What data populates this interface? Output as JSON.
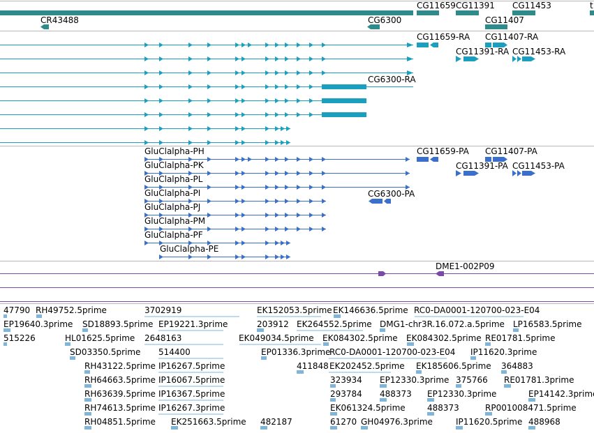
{
  "colors": {
    "gene": "#2e8b8b",
    "transcript": "#1a9fbf",
    "protein": "#3a6fcc",
    "misc": "#7a4aa8",
    "est": "#7fb5d8",
    "divider": "#b8b8b8"
  },
  "tracks": {
    "genes": {
      "labels": [
        {
          "id": "g1",
          "text": "CG11659"
        },
        {
          "id": "g2",
          "text": "CG11391"
        },
        {
          "id": "g3",
          "text": "CG11453"
        },
        {
          "id": "g4",
          "text": "t"
        },
        {
          "id": "g5",
          "text": "CR43488"
        },
        {
          "id": "g6",
          "text": "CG6300"
        },
        {
          "id": "g7",
          "text": "CG11407"
        }
      ]
    },
    "transcripts": {
      "labels": [
        {
          "id": "t1",
          "text": "CG11659-RA"
        },
        {
          "id": "t2",
          "text": "CG11407-RA"
        },
        {
          "id": "t3",
          "text": "CG11391-RA"
        },
        {
          "id": "t4",
          "text": "CG11453-RA"
        },
        {
          "id": "t5",
          "text": "CG6300-RA"
        }
      ]
    },
    "proteins": {
      "labels": [
        {
          "id": "p1",
          "text": "GluClalpha-PH"
        },
        {
          "id": "p2",
          "text": "GluClalpha-PK"
        },
        {
          "id": "p3",
          "text": "GluClalpha-PL"
        },
        {
          "id": "p4",
          "text": "GluClalpha-PI"
        },
        {
          "id": "p5",
          "text": "GluClalpha-PJ"
        },
        {
          "id": "p6",
          "text": "GluClalpha-PM"
        },
        {
          "id": "p7",
          "text": "GluClalpha-PF"
        },
        {
          "id": "p8",
          "text": "GluClalpha-PE"
        },
        {
          "id": "p9",
          "text": "CG11659-PA"
        },
        {
          "id": "p10",
          "text": "CG11407-PA"
        },
        {
          "id": "p11",
          "text": "CG11391-PA"
        },
        {
          "id": "p12",
          "text": "CG11453-PA"
        },
        {
          "id": "p13",
          "text": "CG6300-PA"
        }
      ]
    },
    "misc": {
      "labels": [
        {
          "id": "m1",
          "text": "DME1-002P09"
        }
      ]
    },
    "ests": {
      "labels": [
        {
          "id": "e1",
          "text": "47790"
        },
        {
          "id": "e2",
          "text": "RH49752.5prime"
        },
        {
          "id": "e3",
          "text": "3702919"
        },
        {
          "id": "e4",
          "text": "EK152053.5prime"
        },
        {
          "id": "e5",
          "text": "EK146636.5prime"
        },
        {
          "id": "e6",
          "text": "RC0-DA0001-120700-023-E04"
        },
        {
          "id": "e7",
          "text": "EP19640.3prime"
        },
        {
          "id": "e8",
          "text": "SD18893.5prime"
        },
        {
          "id": "e9",
          "text": "EP19221.3prime"
        },
        {
          "id": "e10",
          "text": "203912"
        },
        {
          "id": "e11",
          "text": "EK264552.5prime"
        },
        {
          "id": "e12",
          "text": "DMG1-chr3R.16.072.a.5prime"
        },
        {
          "id": "e13",
          "text": "LP16583.5prime"
        },
        {
          "id": "e14",
          "text": "515226"
        },
        {
          "id": "e15",
          "text": "HL01625.5prime"
        },
        {
          "id": "e16",
          "text": "2648163"
        },
        {
          "id": "e17",
          "text": "EK049034.5prime"
        },
        {
          "id": "e18",
          "text": "EK084302.5prime"
        },
        {
          "id": "e19",
          "text": "EK084302.5prime"
        },
        {
          "id": "e20",
          "text": "RE01781.5prime"
        },
        {
          "id": "e21",
          "text": "SD03350.5prime"
        },
        {
          "id": "e22",
          "text": "514400"
        },
        {
          "id": "e23",
          "text": "EP01336.3prime"
        },
        {
          "id": "e24",
          "text": "RC0-DA0001-120700-023-E04"
        },
        {
          "id": "e25",
          "text": "IP11620.3prime"
        },
        {
          "id": "e26",
          "text": "RH43122.5prime"
        },
        {
          "id": "e27",
          "text": "IP16267.5prime"
        },
        {
          "id": "e28",
          "text": "411848"
        },
        {
          "id": "e29",
          "text": "EK202452.5prime"
        },
        {
          "id": "e30",
          "text": "EK185606.5prime"
        },
        {
          "id": "e31",
          "text": "364883"
        },
        {
          "id": "e32",
          "text": "RH64663.5prime"
        },
        {
          "id": "e33",
          "text": "IP16067.5prime"
        },
        {
          "id": "e34",
          "text": "323934"
        },
        {
          "id": "e35",
          "text": "EP12330.3prime"
        },
        {
          "id": "e36",
          "text": "375766"
        },
        {
          "id": "e37",
          "text": "RE01781.3prime"
        },
        {
          "id": "e38",
          "text": "RH63639.5prime"
        },
        {
          "id": "e39",
          "text": "IP16367.5prime"
        },
        {
          "id": "e40",
          "text": "293784"
        },
        {
          "id": "e41",
          "text": "488373"
        },
        {
          "id": "e42",
          "text": "EP12330.3prime"
        },
        {
          "id": "e43",
          "text": "EP14142.3prime"
        },
        {
          "id": "e44",
          "text": "RH74613.5prime"
        },
        {
          "id": "e45",
          "text": "IP16267.3prime"
        },
        {
          "id": "e46",
          "text": "EK061324.5prime"
        },
        {
          "id": "e47",
          "text": "488373"
        },
        {
          "id": "e48",
          "text": "RP001008471.5prime"
        },
        {
          "id": "e49",
          "text": "RH04851.5prime"
        },
        {
          "id": "e50",
          "text": "EK251663.5prime"
        },
        {
          "id": "e51",
          "text": "482187"
        },
        {
          "id": "e52",
          "text": "61270"
        },
        {
          "id": "e53",
          "text": "GH04976.3prime"
        },
        {
          "id": "e54",
          "text": "IP11620.5prime"
        },
        {
          "id": "e55",
          "text": "488968"
        }
      ]
    }
  }
}
